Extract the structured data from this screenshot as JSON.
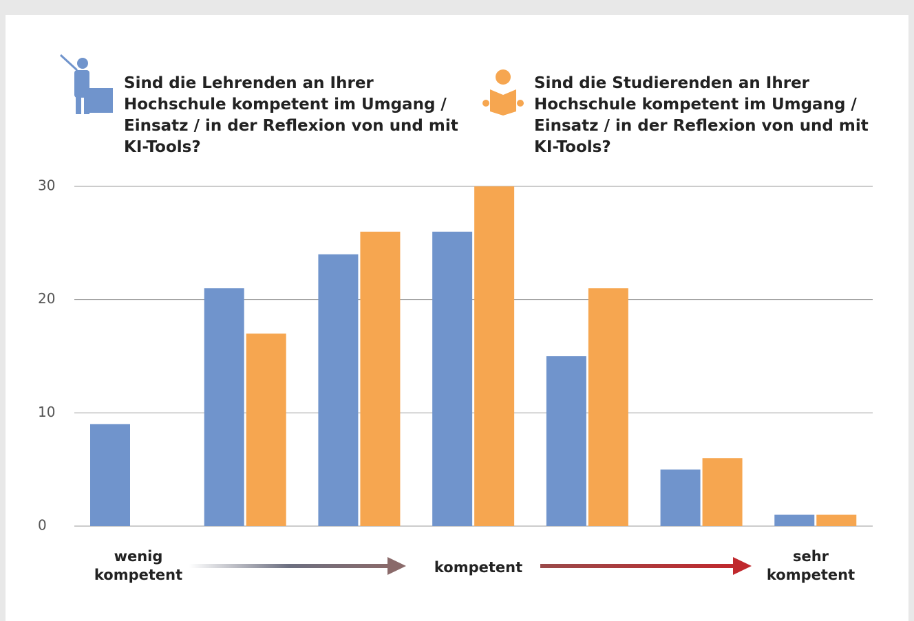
{
  "chart_data": {
    "type": "bar",
    "categories": [
      null,
      null,
      null,
      null,
      null,
      null,
      null
    ],
    "series": [
      {
        "name": "Sind die Lehrenden an Ihrer Hochschule kompetent im Umgang / Einsatz / in der Reflexion von und mit KI-Tools?",
        "color": "#7094cc",
        "values": [
          9,
          21,
          24,
          26,
          15,
          5,
          1
        ]
      },
      {
        "name": "Sind die Studierenden an Ihrer Hochschule kompetent im Umgang / Einsatz / in der Reflexion von und mit KI-Tools?",
        "color": "#f6a650",
        "values": [
          0,
          17,
          26,
          30,
          21,
          6,
          1
        ]
      }
    ],
    "ylim": [
      0,
      30
    ],
    "yticks": [
      0,
      10,
      20,
      30
    ],
    "grid": true,
    "annotations": [
      "wenig kompetent",
      "kompetent",
      "sehr kompetent"
    ]
  }
}
